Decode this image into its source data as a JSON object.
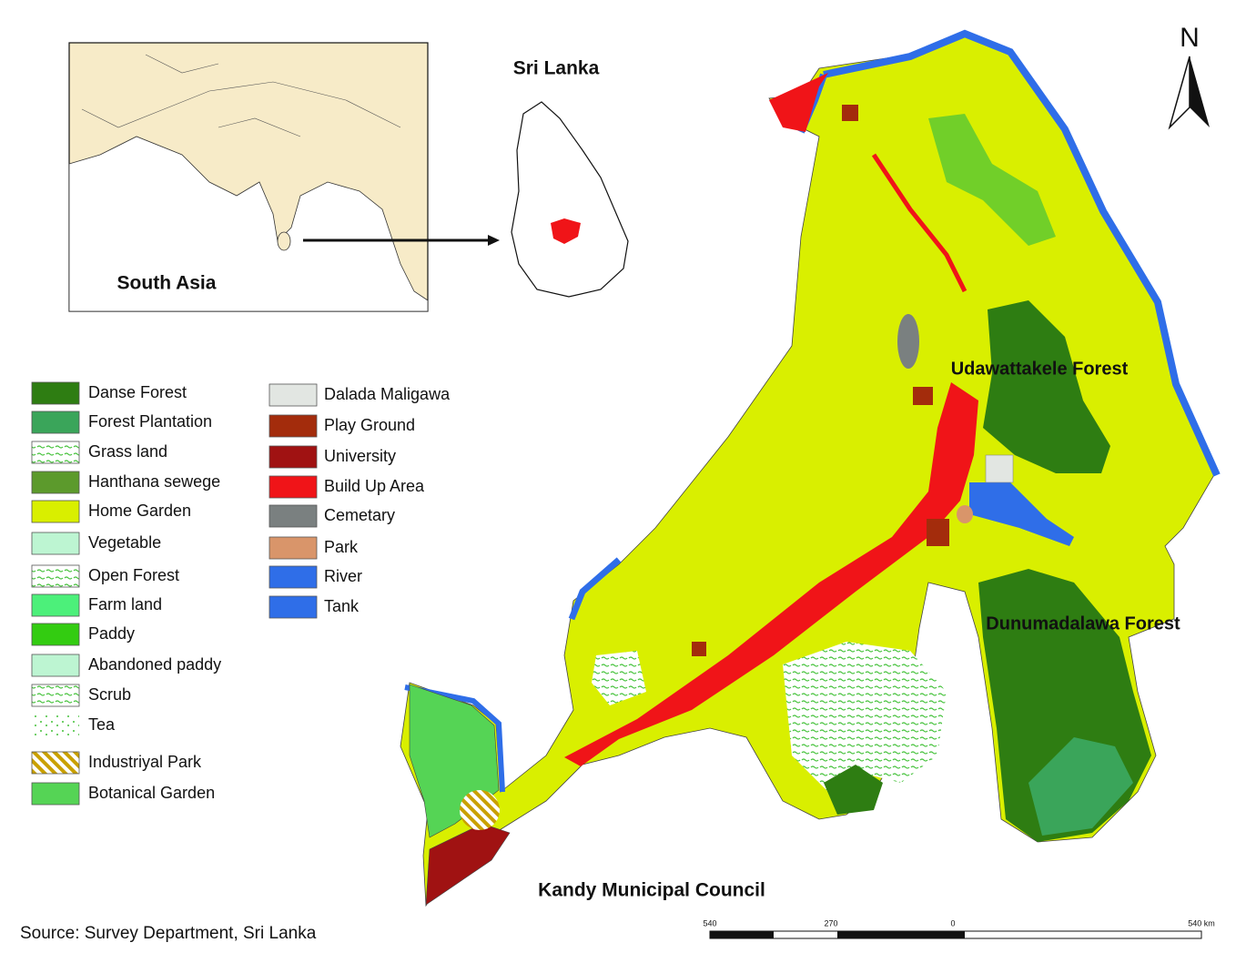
{
  "inset": {
    "region_label": "South Asia",
    "country_label": "Sri Lanka"
  },
  "north_label": "N",
  "map_labels": [
    "Udawattakele Forest",
    "Dunumadalawa Forest",
    "Kandy Municipal Council"
  ],
  "legend": {
    "left": [
      {
        "label": "Danse Forest",
        "color": "#2e7d12",
        "pattern": "solid"
      },
      {
        "label": "Forest Plantation",
        "color": "#3aa55a",
        "pattern": "solid"
      },
      {
        "label": "Grass land",
        "color": "#44c23a",
        "pattern": "dots"
      },
      {
        "label": "Hanthana sewege",
        "color": "#5c9a2c",
        "pattern": "solid"
      },
      {
        "label": "Home Garden",
        "color": "#d9ef00",
        "pattern": "solid"
      },
      {
        "label": "Vegetable",
        "color": "#bdf5d2",
        "pattern": "solid"
      },
      {
        "label": "Open Forest",
        "color": "#3cb040",
        "pattern": "dots"
      },
      {
        "label": "Farm land",
        "color": "#4cf07a",
        "pattern": "solid"
      },
      {
        "label": "Paddy",
        "color": "#33cc11",
        "pattern": "solid"
      },
      {
        "label": "Abandoned paddy",
        "color": "#bdf5d2",
        "pattern": "solid"
      },
      {
        "label": "Scrub",
        "color": "#44c23a",
        "pattern": "dots"
      },
      {
        "label": "Tea",
        "color": "#44c23a",
        "pattern": "sparse"
      },
      {
        "label": "Industriyal Park",
        "color": "#c9a000",
        "pattern": "hatch"
      },
      {
        "label": "Botanical Garden",
        "color": "#55d455",
        "pattern": "solid"
      }
    ],
    "right": [
      {
        "label": "Dalada Maligawa",
        "color": "#e2e6e2",
        "pattern": "solid"
      },
      {
        "label": "Play Ground",
        "color": "#a32c0c",
        "pattern": "solid"
      },
      {
        "label": "University",
        "color": "#a01212",
        "pattern": "solid"
      },
      {
        "label": "Build Up Area",
        "color": "#f01418",
        "pattern": "solid"
      },
      {
        "label": "Cemetary",
        "color": "#7a8080",
        "pattern": "solid"
      },
      {
        "label": "Park",
        "color": "#d9956a",
        "pattern": "solid"
      },
      {
        "label": "River",
        "color": "#2f6ee8",
        "pattern": "solid"
      },
      {
        "label": "Tank",
        "color": "#2f6ee8",
        "pattern": "solid"
      }
    ]
  },
  "source": "Source: Survey Department, Sri Lanka",
  "scale_bar": [
    "540",
    "270",
    "0",
    "540 km"
  ]
}
